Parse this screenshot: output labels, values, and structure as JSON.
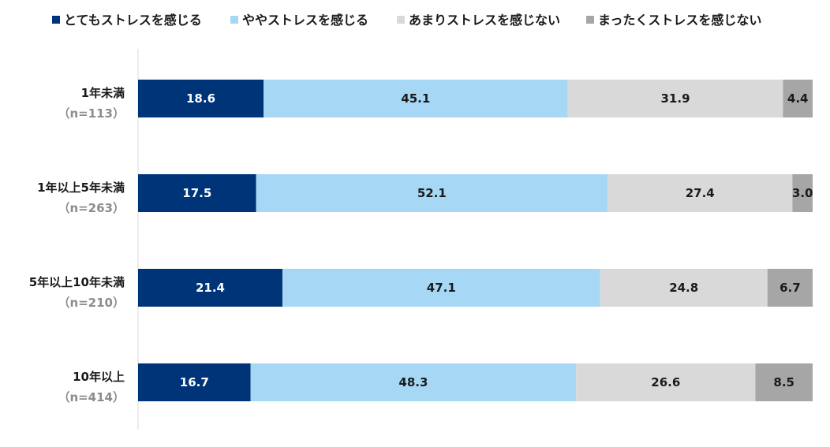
{
  "chart_data": {
    "type": "bar",
    "orientation": "horizontal",
    "stacked": true,
    "percent_stacked": true,
    "categories": [
      "1年未満",
      "1年以上5年未満",
      "5年以上10年未満",
      "10年以上"
    ],
    "sample_sizes": [
      "（n=113）",
      "（n=263）",
      "（n=210）",
      "（n=414）"
    ],
    "series": [
      {
        "name": "とてもストレスを感じる",
        "color": "#003478",
        "label_color": "#ffffff",
        "values": [
          18.6,
          17.5,
          21.4,
          16.7
        ]
      },
      {
        "name": "ややストレスを感じる",
        "color": "#a6d8f5",
        "label_color": "#1a1a1a",
        "values": [
          45.1,
          52.1,
          47.1,
          48.3
        ]
      },
      {
        "name": "あまりストレスを感じない",
        "color": "#d9d9d9",
        "label_color": "#1a1a1a",
        "values": [
          31.9,
          27.4,
          24.8,
          26.6
        ]
      },
      {
        "name": "まったくストレスを感じない",
        "color": "#a6a6a6",
        "label_color": "#1a1a1a",
        "values": [
          4.4,
          3.0,
          6.7,
          8.5
        ]
      }
    ],
    "value_format": "0.0",
    "legend_position": "top",
    "xlim": [
      0,
      100
    ],
    "grid": false
  }
}
